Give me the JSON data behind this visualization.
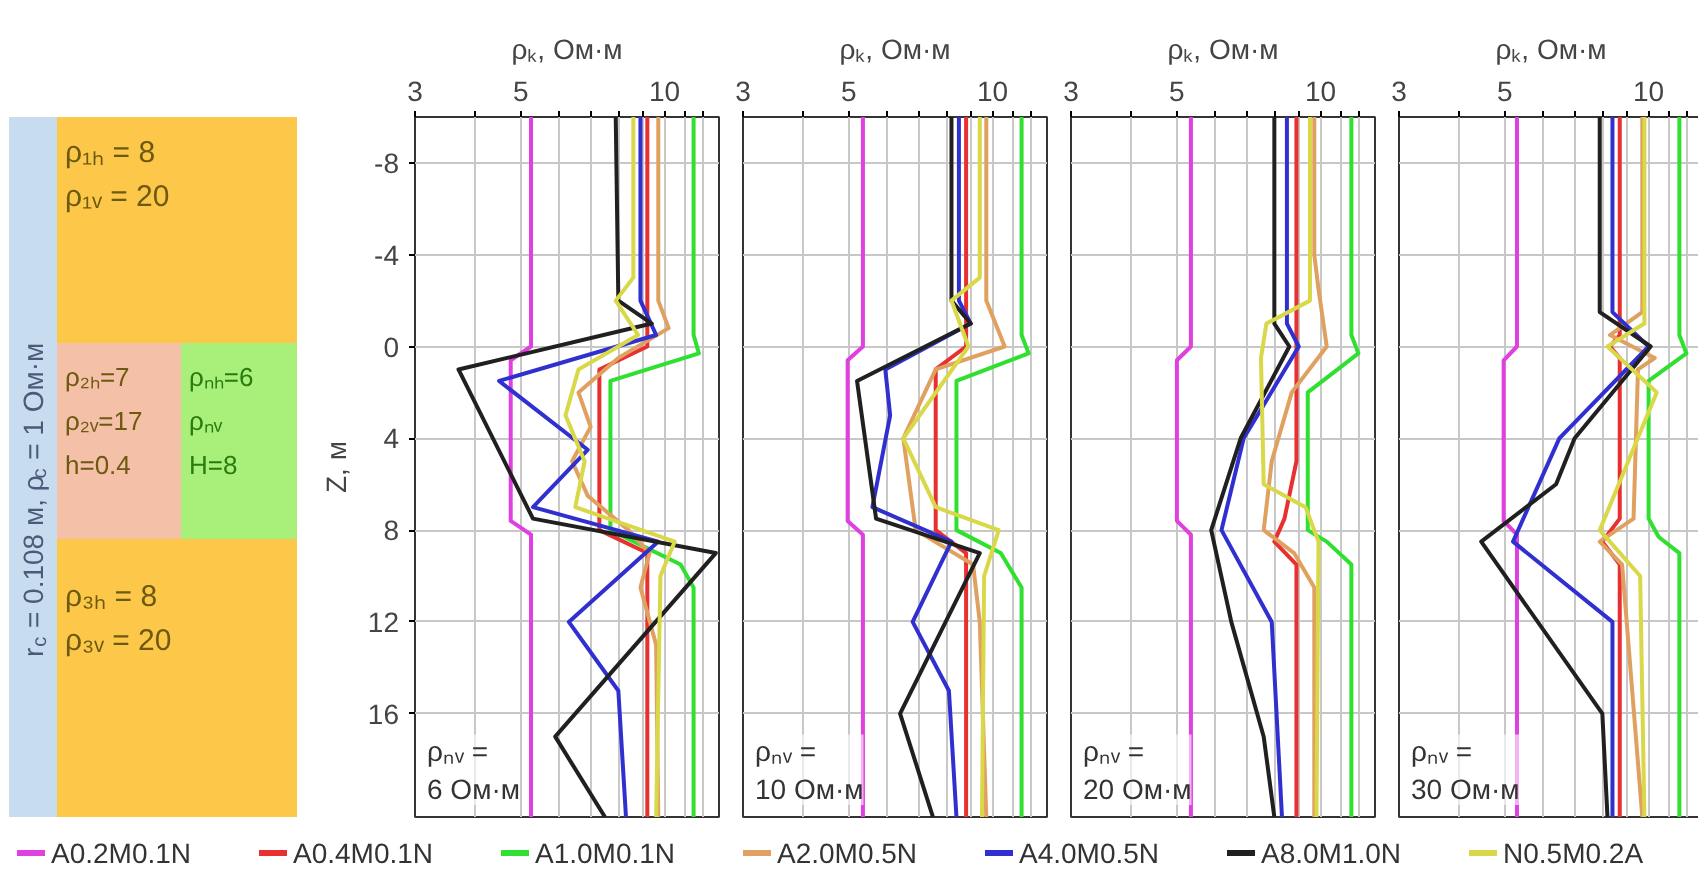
{
  "chart_data": [
    {
      "type": "other",
      "annotations": [
        "r$_{c}$ = 0.108 м, ρ$_{c}$ = 1 Ом·м",
        "ρ₁ₕ = 8",
        "ρ₁ᵥ = 20",
        "ρ₂ₕ=7",
        "ρ₂ᵥ=17",
        "h=0.4",
        "ρₙₕ=6",
        "ρₙᵥ",
        "H=8",
        "ρ₃ₕ = 8",
        "ρ₃ᵥ = 20"
      ]
    },
    {
      "type": "line",
      "xlabel": "ρₖ, Ом·м",
      "ylabel": "Z, м",
      "xlim": [
        3,
        13
      ],
      "ylim": [
        20.5,
        -10
      ],
      "xticks": [
        3,
        {
          "value": 4,
          "label": null
        },
        5,
        {
          "value": 6,
          "label": null
        },
        {
          "value": 7,
          "label": null
        },
        {
          "value": 8,
          "label": null
        },
        {
          "value": 9,
          "label": null
        },
        10,
        {
          "value": 11,
          "label": null
        },
        {
          "value": 12,
          "label": null
        }
      ],
      "yticks": [
        -8,
        -4,
        0,
        4,
        8,
        12,
        16
      ],
      "log": "x",
      "grid": true,
      "legend": "bottom",
      "line_style": "solid",
      "annotations": [
        "ρₙᵥ =\n6 Ом·м"
      ],
      "series": [
        {
          "name": "A0.2M0.1N",
          "color": "#e040e0",
          "values": [
            -10,
            0,
            0.6,
            7.6,
            8.2,
            20.5
          ],
          "x": [
            5.25,
            5.25,
            4.76,
            4.76,
            5.25,
            5.25
          ]
        },
        {
          "name": "A0.4M0.1N",
          "color": "#e83030",
          "values": [
            -10,
            0,
            1,
            8,
            9,
            20.5
          ],
          "x": [
            9.2,
            9.2,
            7.3,
            7.3,
            9.2,
            9.2
          ]
        },
        {
          "name": "A1.0M0.1N",
          "color": "#30e030",
          "values": [
            -10,
            -0.5,
            0.3,
            1.5,
            8,
            9.5,
            10.5,
            20.5
          ],
          "x": [
            11.5,
            11.5,
            11.8,
            7.7,
            7.7,
            10.8,
            11.5,
            11.5
          ]
        },
        {
          "name": "A2.0M0.5N",
          "color": "#e0a060",
          "values": [
            -10,
            -2,
            -0.8,
            0.5,
            2,
            3.5,
            5,
            6.5,
            8,
            9,
            10.5,
            13,
            20.5
          ],
          "x": [
            9.7,
            9.7,
            10.2,
            8.0,
            6.6,
            7.0,
            6.4,
            6.9,
            8.4,
            9.3,
            8.9,
            9.6,
            9.7
          ]
        },
        {
          "name": "A4.0M0.5N",
          "color": "#3030d0",
          "values": [
            -10,
            -2,
            -0.5,
            1.5,
            4.5,
            7,
            8.5,
            12,
            15,
            20.5
          ],
          "x": [
            8.9,
            8.9,
            9.6,
            4.5,
            6.9,
            5.3,
            9.7,
            6.3,
            8.0,
            8.3
          ]
        },
        {
          "name": "A8.0M1.0N",
          "color": "#202020",
          "values": [
            -10,
            -2,
            -1,
            1,
            7.5,
            9,
            17,
            20.5
          ],
          "x": [
            7.9,
            8.0,
            9.4,
            3.7,
            5.3,
            12.8,
            5.9,
            7.5
          ]
        },
        {
          "name": "N0.5M0.2A",
          "color": "#d8d848",
          "values": [
            -10,
            -3,
            -2,
            -0.5,
            1,
            3,
            5,
            7,
            8.5,
            10,
            20.5
          ],
          "x": [
            8.6,
            8.6,
            7.9,
            8.8,
            6.6,
            6.2,
            6.8,
            6.5,
            10.5,
            9.8,
            9.6
          ]
        }
      ]
    },
    {
      "type": "line",
      "xlabel": "ρₖ, Ом·м",
      "xlim": [
        3,
        13
      ],
      "ylim": [
        20.5,
        -10
      ],
      "xticks": [
        3,
        {
          "value": 4,
          "label": null
        },
        5,
        {
          "value": 6,
          "label": null
        },
        {
          "value": 7,
          "label": null
        },
        {
          "value": 8,
          "label": null
        },
        {
          "value": 9,
          "label": null
        },
        10,
        {
          "value": 11,
          "label": null
        },
        {
          "value": 12,
          "label": null
        }
      ],
      "yticks": [
        -8,
        -4,
        0,
        4,
        8,
        12,
        16
      ],
      "tick_labels": "x",
      "log": "x",
      "grid": true,
      "legend": "bottom",
      "line_style": "solid",
      "annotations": [
        "ρₙᵥ =\n10 Ом·м"
      ],
      "series": [
        {
          "name": "A0.2M0.1N",
          "color": "#e040e0",
          "values": [
            -10,
            0,
            0.6,
            7.6,
            8.2,
            20.5
          ],
          "x": [
            5.35,
            5.35,
            4.97,
            4.97,
            5.35,
            5.35
          ]
        },
        {
          "name": "A0.4M0.1N",
          "color": "#e83030",
          "values": [
            -10,
            0,
            1,
            8,
            9,
            20.5
          ],
          "x": [
            8.8,
            8.8,
            7.6,
            7.6,
            8.8,
            8.8
          ]
        },
        {
          "name": "A1.0M0.1N",
          "color": "#30e030",
          "values": [
            -10,
            -0.5,
            0.3,
            1.5,
            8,
            9,
            10.5,
            20.5
          ],
          "x": [
            11.5,
            11.5,
            11.9,
            8.4,
            8.4,
            10.4,
            11.5,
            11.5
          ]
        },
        {
          "name": "A2.0M0.5N",
          "color": "#e0a060",
          "values": [
            -10,
            -2,
            0,
            1,
            4,
            8,
            9.5,
            12,
            20.5
          ],
          "x": [
            9.7,
            9.7,
            10.6,
            7.6,
            6.5,
            6.9,
            9.1,
            9.4,
            9.7
          ]
        },
        {
          "name": "A4.0M0.5N",
          "color": "#3030d0",
          "values": [
            -10,
            -2,
            -1,
            1,
            3,
            7,
            8.5,
            12,
            15,
            20.5
          ],
          "x": [
            8.5,
            8.5,
            9.0,
            5.96,
            6.1,
            5.6,
            8.2,
            6.8,
            8.1,
            8.4
          ]
        },
        {
          "name": "A8.0M1.0N",
          "color": "#202020",
          "values": [
            -10,
            -2,
            -1,
            1.5,
            7.5,
            9,
            16,
            20.5
          ],
          "x": [
            8.2,
            8.2,
            9.0,
            5.2,
            5.7,
            9.4,
            6.4,
            7.5
          ]
        },
        {
          "name": "N0.5M0.2A",
          "color": "#d8d848",
          "values": [
            -10,
            -3,
            -2,
            0,
            4,
            7,
            8,
            10,
            20.5
          ],
          "x": [
            9.4,
            9.4,
            8.2,
            8.9,
            6.5,
            7.6,
            10.3,
            9.6,
            9.5
          ]
        }
      ]
    },
    {
      "type": "line",
      "xlabel": "ρₖ, Ом·м",
      "xlim": [
        3,
        13
      ],
      "ylim": [
        20.5,
        -10
      ],
      "xticks": [
        3,
        {
          "value": 4,
          "label": null
        },
        5,
        {
          "value": 6,
          "label": null
        },
        {
          "value": 7,
          "label": null
        },
        {
          "value": 8,
          "label": null
        },
        {
          "value": 9,
          "label": null
        },
        10,
        {
          "value": 11,
          "label": null
        },
        {
          "value": 12,
          "label": null
        }
      ],
      "yticks": [
        -8,
        -4,
        0,
        4,
        8,
        12,
        16
      ],
      "tick_labels": "x",
      "log": "x",
      "grid": true,
      "legend": "bottom",
      "line_style": "solid",
      "annotations": [
        "ρₙᵥ =\n20 Ом·м"
      ],
      "series": [
        {
          "name": "A0.2M0.1N",
          "color": "#e040e0",
          "values": [
            -10,
            0,
            0.6,
            7.6,
            8.2,
            20.5
          ],
          "x": [
            5.35,
            5.35,
            5.0,
            5.0,
            5.35,
            5.35
          ]
        },
        {
          "name": "A0.4M0.1N",
          "color": "#e83030",
          "values": [
            -10,
            5,
            7.5,
            8.5,
            9.5,
            20.5
          ],
          "x": [
            8.9,
            8.9,
            8.4,
            8.0,
            8.9,
            8.9
          ]
        },
        {
          "name": "A1.0M0.1N",
          "color": "#30e030",
          "values": [
            -10,
            -0.5,
            0.3,
            2,
            8,
            8.5,
            9.5,
            20.5
          ],
          "x": [
            11.6,
            11.6,
            12.0,
            9.4,
            9.4,
            10.3,
            11.6,
            11.6
          ]
        },
        {
          "name": "A2.0M0.5N",
          "color": "#e0a060",
          "values": [
            -10,
            -4,
            -2.5,
            0,
            2,
            5,
            8,
            9,
            10.5,
            20.5
          ],
          "x": [
            9.7,
            9.7,
            9.9,
            10.3,
            8.7,
            7.9,
            7.6,
            8.8,
            9.7,
            9.7
          ]
        },
        {
          "name": "A4.0M0.5N",
          "color": "#3030d0",
          "values": [
            -10,
            -1,
            0,
            4,
            8,
            12,
            20.5
          ],
          "x": [
            8.5,
            8.5,
            9.0,
            6.9,
            6.2,
            7.9,
            8.3
          ]
        },
        {
          "name": "A8.0M1.0N",
          "color": "#202020",
          "values": [
            -10,
            -1,
            0,
            4,
            8,
            12,
            17,
            20.5
          ],
          "x": [
            8.0,
            8.0,
            8.6,
            6.8,
            5.9,
            6.5,
            7.6,
            8.0
          ]
        },
        {
          "name": "N0.5M0.2A",
          "color": "#d8d848",
          "values": [
            -10,
            -2,
            -1,
            0.5,
            6,
            7,
            8.5,
            20.5
          ],
          "x": [
            9.5,
            9.5,
            7.7,
            7.5,
            7.6,
            9.3,
            9.9,
            9.8
          ]
        }
      ]
    },
    {
      "type": "line",
      "xlabel": "ρₖ, Ом·м",
      "xlim": [
        3,
        13
      ],
      "ylim": [
        20.5,
        -10
      ],
      "xticks": [
        3,
        {
          "value": 4,
          "label": null
        },
        5,
        {
          "value": 6,
          "label": null
        },
        {
          "value": 7,
          "label": null
        },
        {
          "value": 8,
          "label": null
        },
        {
          "value": 9,
          "label": null
        },
        10,
        {
          "value": 11,
          "label": null
        },
        {
          "value": 12,
          "label": null
        }
      ],
      "yticks": [
        -8,
        -4,
        0,
        4,
        8,
        12,
        16
      ],
      "tick_labels": "x",
      "log": "x",
      "grid": true,
      "legend": "bottom",
      "line_style": "solid",
      "annotations": [
        "ρₙᵥ =\n30 Ом·м"
      ],
      "series": [
        {
          "name": "A0.2M0.1N",
          "color": "#e040e0",
          "values": [
            -10,
            0,
            0.6,
            7.6,
            8.2,
            20.5
          ],
          "x": [
            5.3,
            5.3,
            4.97,
            4.97,
            5.3,
            5.3
          ]
        },
        {
          "name": "A0.4M0.1N",
          "color": "#e83030",
          "values": [
            -10,
            -0.5,
            0,
            0.5,
            7.5,
            8.5,
            9.5,
            20.5
          ],
          "x": [
            8.7,
            8.7,
            8.3,
            8.7,
            8.7,
            8.0,
            8.7,
            8.7
          ]
        },
        {
          "name": "A1.0M0.1N",
          "color": "#30e030",
          "values": [
            -10,
            -0.5,
            0.3,
            1.5,
            7.5,
            8.3,
            9,
            20.5
          ],
          "x": [
            11.6,
            11.6,
            12.0,
            10.0,
            10.0,
            10.5,
            11.6,
            11.6
          ]
        },
        {
          "name": "A2.0M0.5N",
          "color": "#e0a060",
          "values": [
            -10,
            -1.5,
            -0.5,
            0.5,
            1,
            7.5,
            8.5,
            9.5,
            20.5
          ],
          "x": [
            9.7,
            9.7,
            8.3,
            10.3,
            9.5,
            9.3,
            7.9,
            8.8,
            9.7
          ]
        },
        {
          "name": "A4.0M0.5N",
          "color": "#3030d0",
          "values": [
            -10,
            -1.5,
            0,
            4,
            8.5,
            12,
            20.5
          ],
          "x": [
            8.4,
            8.4,
            10.0,
            6.5,
            5.2,
            8.4,
            8.4
          ]
        },
        {
          "name": "A8.0M1.0N",
          "color": "#202020",
          "values": [
            -10,
            -1.5,
            0,
            4,
            6,
            8.5,
            16,
            20.5
          ],
          "x": [
            7.9,
            7.9,
            10.1,
            7.0,
            6.4,
            4.46,
            8.0,
            8.2
          ]
        },
        {
          "name": "N0.5M0.2A",
          "color": "#d8d848",
          "values": [
            -10,
            -1,
            0,
            2,
            8,
            10,
            20.5
          ],
          "x": [
            9.8,
            9.8,
            8.2,
            10.4,
            7.9,
            9.6,
            9.8
          ]
        }
      ]
    }
  ]
}
